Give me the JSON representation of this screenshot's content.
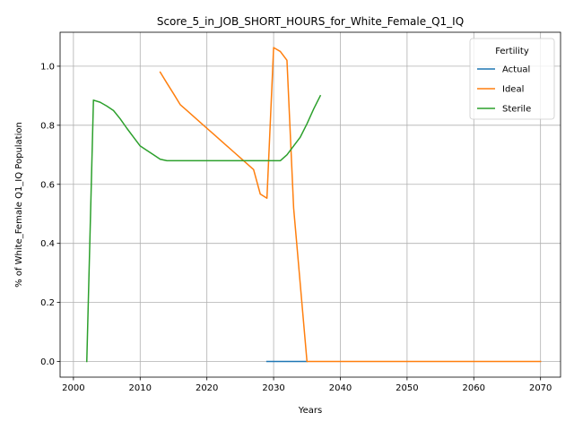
{
  "chart_data": {
    "type": "line",
    "title": "Score_5_in_JOB_SHORT_HOURS_for_White_Female_Q1_IQ",
    "xlabel": "Years",
    "ylabel": "% of White_Female Q1_IQ Population",
    "xlim": [
      1998,
      2073
    ],
    "ylim": [
      -0.053,
      1.115
    ],
    "xticks": [
      2000,
      2010,
      2020,
      2030,
      2040,
      2050,
      2060,
      2070
    ],
    "xtick_labels": [
      "2000",
      "2010",
      "2020",
      "2030",
      "2040",
      "2050",
      "2060",
      "2070"
    ],
    "yticks": [
      0.0,
      0.2,
      0.4,
      0.6,
      0.8,
      1.0
    ],
    "ytick_labels": [
      "0.0",
      "0.2",
      "0.4",
      "0.6",
      "0.8",
      "1.0"
    ],
    "grid": true,
    "legend": {
      "title": "Fertility",
      "position": "top-right"
    },
    "series": [
      {
        "name": "Actual",
        "color": "#1f77b4",
        "points": [
          [
            2029,
            0.0
          ],
          [
            2030,
            0.0
          ],
          [
            2031,
            0.0
          ],
          [
            2032,
            0.0
          ],
          [
            2033,
            0.0
          ],
          [
            2034,
            0.0
          ],
          [
            2035,
            0.0
          ]
        ]
      },
      {
        "name": "Ideal",
        "color": "#ff7f0e",
        "points": [
          [
            2013,
            0.98
          ],
          [
            2014,
            0.943
          ],
          [
            2015,
            0.907
          ],
          [
            2016,
            0.87
          ],
          [
            2017,
            0.85
          ],
          [
            2018,
            0.83
          ],
          [
            2019,
            0.81
          ],
          [
            2020,
            0.79
          ],
          [
            2021,
            0.77
          ],
          [
            2022,
            0.75
          ],
          [
            2023,
            0.73
          ],
          [
            2024,
            0.71
          ],
          [
            2025,
            0.69
          ],
          [
            2026,
            0.67
          ],
          [
            2027,
            0.65
          ],
          [
            2028,
            0.567
          ],
          [
            2029,
            0.553
          ],
          [
            2030,
            1.063
          ],
          [
            2031,
            1.05
          ],
          [
            2032,
            1.02
          ],
          [
            2033,
            0.52
          ],
          [
            2034,
            0.26
          ],
          [
            2035,
            0.0
          ],
          [
            2036,
            0.0
          ],
          [
            2040,
            0.0
          ],
          [
            2045,
            0.0
          ],
          [
            2050,
            0.0
          ],
          [
            2055,
            0.0
          ],
          [
            2060,
            0.0
          ],
          [
            2065,
            0.0
          ],
          [
            2070,
            0.0
          ]
        ]
      },
      {
        "name": "Sterile",
        "color": "#2ca02c",
        "points": [
          [
            2002,
            0.0
          ],
          [
            2003,
            0.885
          ],
          [
            2004,
            0.878
          ],
          [
            2005,
            0.865
          ],
          [
            2006,
            0.85
          ],
          [
            2007,
            0.822
          ],
          [
            2008,
            0.79
          ],
          [
            2009,
            0.76
          ],
          [
            2010,
            0.73
          ],
          [
            2011,
            0.715
          ],
          [
            2012,
            0.7
          ],
          [
            2013,
            0.685
          ],
          [
            2014,
            0.68
          ],
          [
            2015,
            0.68
          ],
          [
            2020,
            0.68
          ],
          [
            2025,
            0.68
          ],
          [
            2029,
            0.68
          ],
          [
            2030,
            0.68
          ],
          [
            2031,
            0.68
          ],
          [
            2032,
            0.7
          ],
          [
            2033,
            0.73
          ],
          [
            2034,
            0.76
          ],
          [
            2035,
            0.805
          ],
          [
            2036,
            0.855
          ],
          [
            2037,
            0.9
          ]
        ]
      }
    ]
  }
}
